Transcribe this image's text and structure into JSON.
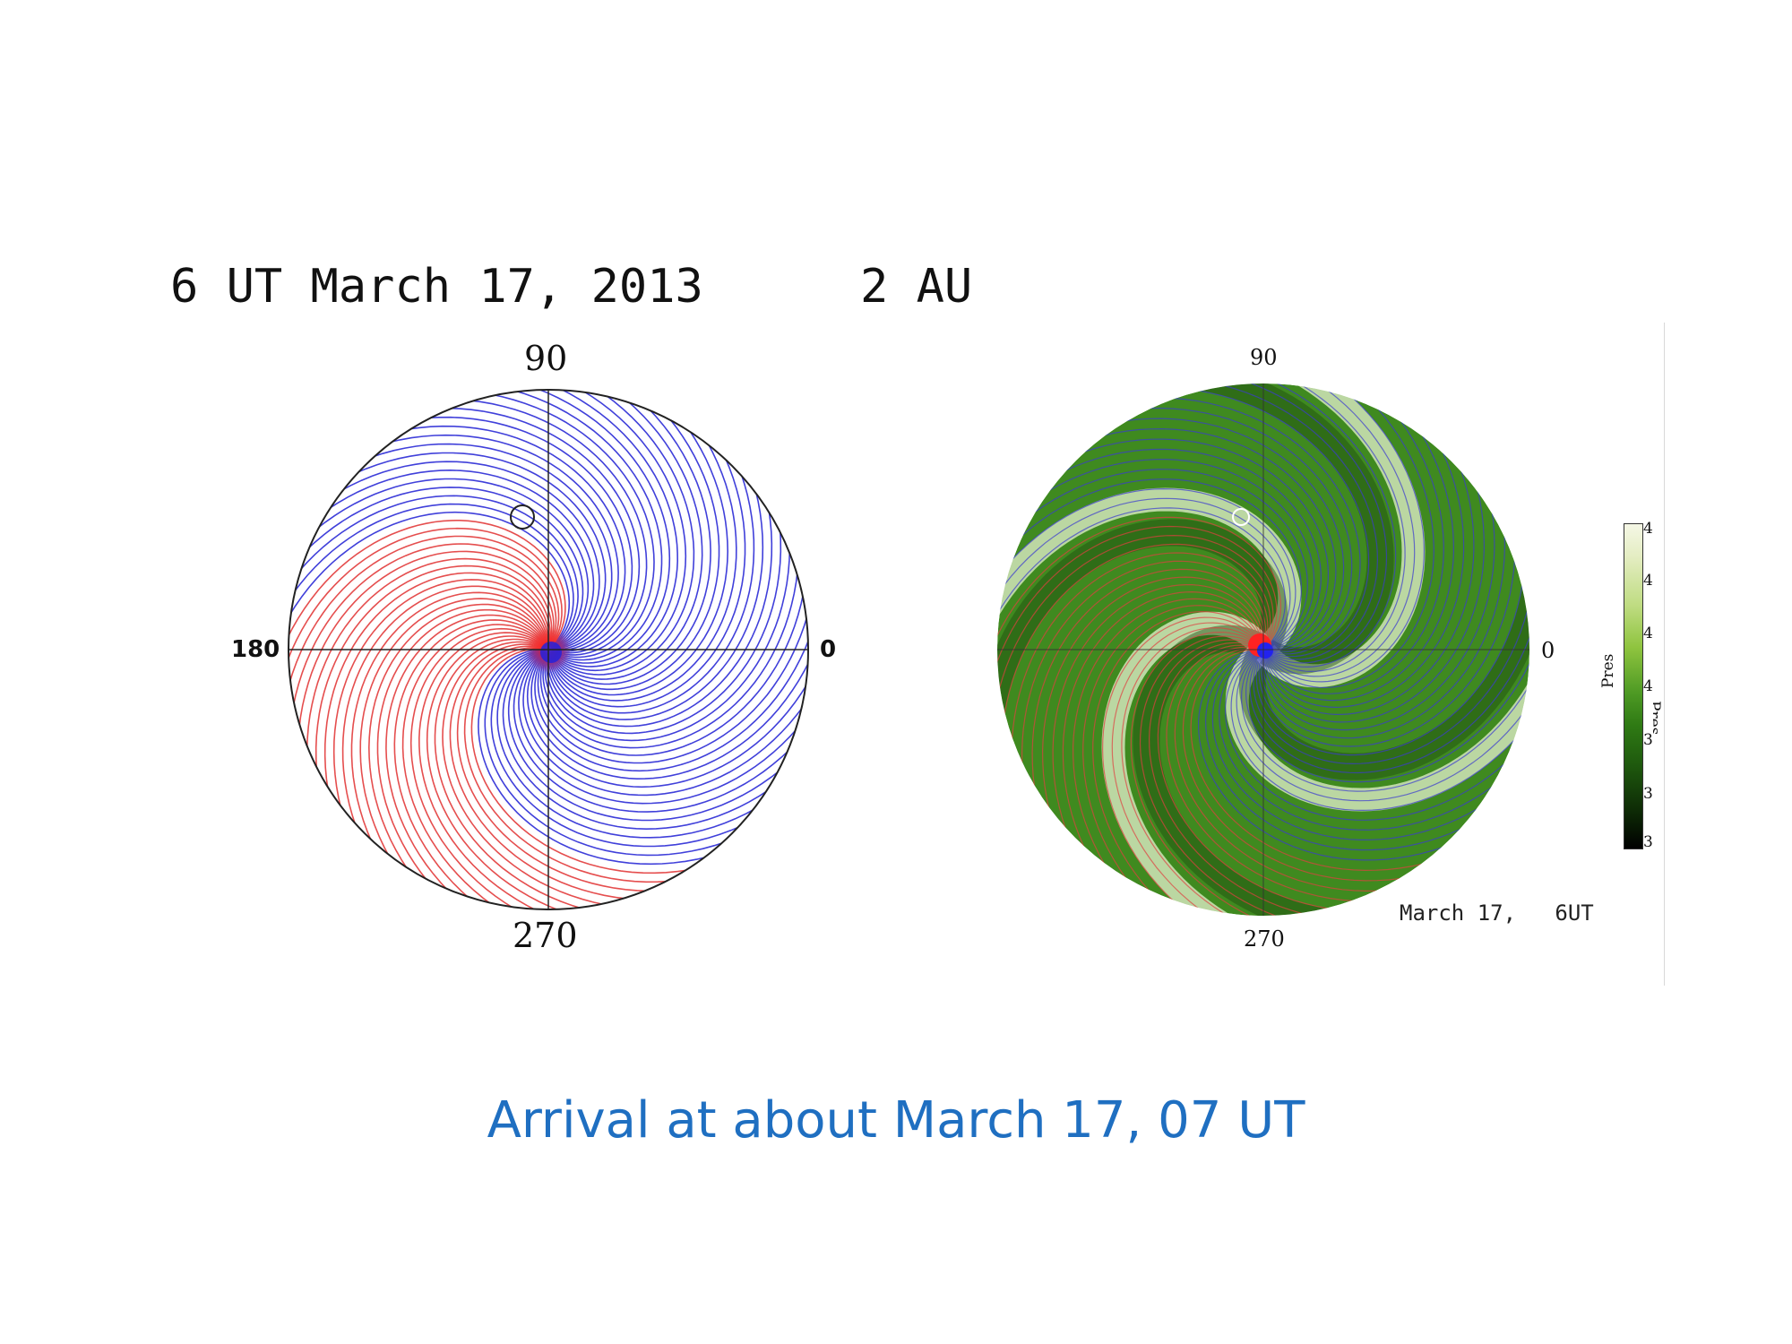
{
  "left_panel": {
    "header_time": "6 UT March 17, 2013",
    "header_distance": "2 AU",
    "angle_labels": {
      "top": "90",
      "left": "180",
      "right": "0",
      "bottom": "270"
    },
    "colors": {
      "outward_field": "#e23b3b",
      "inward_field": "#2b2bd6",
      "frame": "#222222"
    }
  },
  "right_panel": {
    "angle_labels": {
      "top": "90",
      "right": "0",
      "bottom": "270"
    },
    "timestamp": "March 17,   6UT",
    "colorbar": {
      "name": "Pres",
      "name_cut": "Pres",
      "ticks": [
        "4",
        "4",
        "4",
        "4",
        "3",
        "3",
        "3"
      ]
    },
    "colors": {
      "base": "#3f8a1f",
      "highlight": "#e6f0cf",
      "dark": "#1c4a0e",
      "field_lines": "#3a3ad0"
    }
  },
  "caption": "Arrival at about March 17, 07 UT"
}
